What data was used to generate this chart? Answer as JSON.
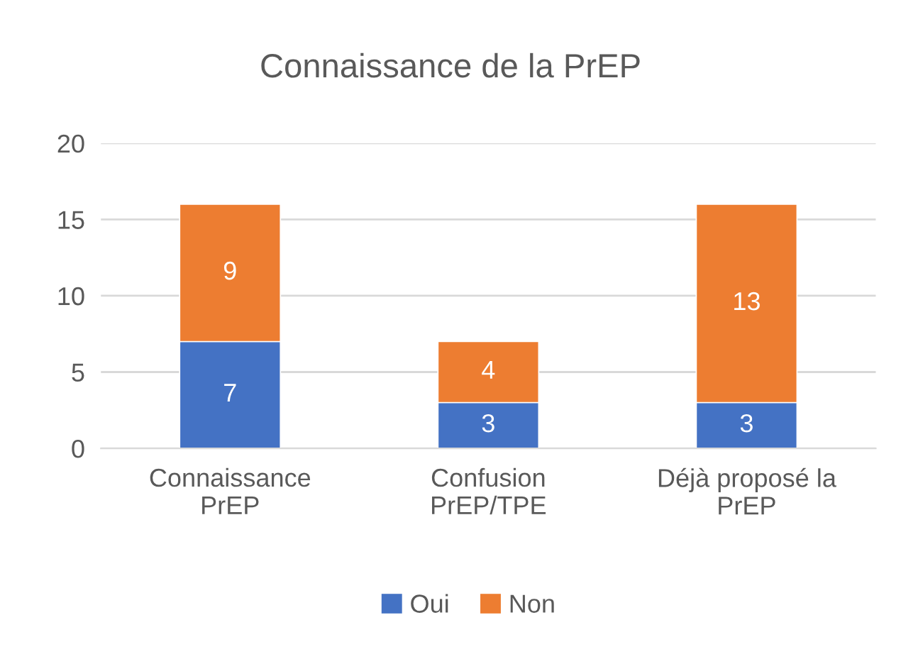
{
  "chart_data": {
    "type": "bar",
    "title": "Connaissance de la PrEP",
    "stacked": true,
    "categories": [
      "Connaissance\nPrEP",
      "Confusion\nPrEP/TPE",
      "Déjà proposé la\nPrEP"
    ],
    "series": [
      {
        "name": "Oui",
        "color": "#4472c4",
        "values": [
          7,
          3,
          3
        ]
      },
      {
        "name": "Non",
        "color": "#ed7d31",
        "values": [
          9,
          4,
          13
        ]
      }
    ],
    "ylim": [
      0,
      20
    ],
    "yticks": [
      0,
      5,
      10,
      15,
      20
    ],
    "grid": "y",
    "legend": "bottom",
    "data_labels": true
  }
}
